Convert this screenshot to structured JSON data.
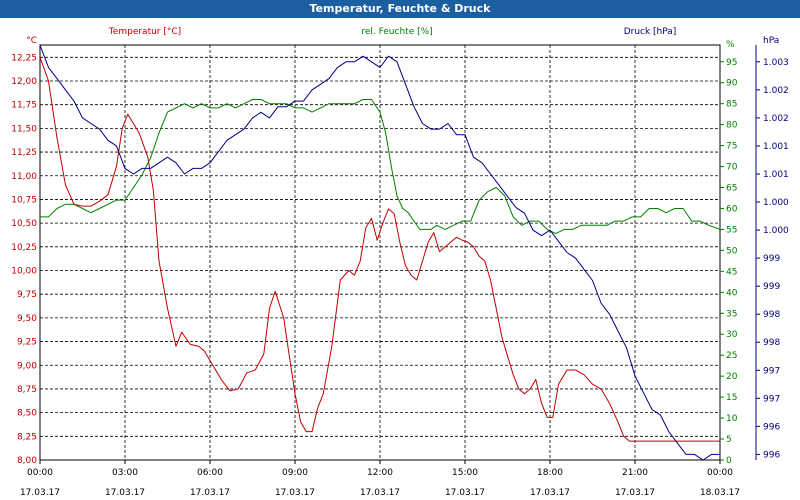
{
  "window": {
    "title": "Temperatur, Feuchte & Druck"
  },
  "chart_data": {
    "type": "line",
    "title": "Temperatur, Feuchte & Druck",
    "grid": true,
    "x_ticks": [
      {
        "time": "00:00",
        "date": "17.03.17"
      },
      {
        "time": "03:00",
        "date": "17.03.17"
      },
      {
        "time": "06:00",
        "date": "17.03.17"
      },
      {
        "time": "09:00",
        "date": "17.03.17"
      },
      {
        "time": "12:00",
        "date": "17.03.17"
      },
      {
        "time": "15:00",
        "date": "17.03.17"
      },
      {
        "time": "18:00",
        "date": "17.03.17"
      },
      {
        "time": "21:00",
        "date": "17.03.17"
      },
      {
        "time": "00:00",
        "date": "18.03.17"
      }
    ],
    "x_range_hours": [
      0,
      24
    ],
    "axes": {
      "temp": {
        "label": "Temperatur [°C]",
        "unit": "°C",
        "color": "#c00000",
        "range": [
          8.0,
          12.38
        ],
        "ticks": [
          "12,25",
          "12,00",
          "11,75",
          "11,50",
          "11,25",
          "11,00",
          "10,75",
          "10,50",
          "10,25",
          "10,00",
          "9,75",
          "9,50",
          "9,25",
          "9,00",
          "8,75",
          "8,50",
          "8,25",
          "8,00"
        ]
      },
      "humidity": {
        "label": "rel. Feuchte [%]",
        "unit": "%",
        "color": "#008000",
        "range": [
          0,
          99
        ],
        "ticks": [
          "95",
          "90",
          "85",
          "80",
          "75",
          "70",
          "65",
          "60",
          "55",
          "50",
          "45",
          "40",
          "35",
          "30",
          "25",
          "20",
          "15",
          "10",
          "5",
          "0"
        ]
      },
      "pressure": {
        "label": "Druck [hPa]",
        "unit": "hPa",
        "color": "#000080",
        "range": [
          995.9,
          1003.3
        ],
        "ticks": [
          "1.003",
          "1.002",
          "1.002",
          "1.001",
          "1.001",
          "1.000",
          "1.000",
          "999",
          "999",
          "998",
          "998",
          "997",
          "997",
          "996",
          "996"
        ]
      }
    },
    "series": [
      {
        "name": "Temperatur [°C]",
        "axis": "temp",
        "color": "#c00000",
        "x": [
          0,
          0.3,
          0.6,
          0.9,
          1.2,
          1.5,
          1.8,
          2.1,
          2.4,
          2.7,
          2.9,
          3.1,
          3.3,
          3.5,
          3.8,
          4.0,
          4.2,
          4.5,
          4.8,
          5.0,
          5.3,
          5.6,
          5.8,
          6.1,
          6.4,
          6.7,
          7.0,
          7.3,
          7.6,
          7.9,
          8.1,
          8.3,
          8.6,
          8.8,
          9.0,
          9.2,
          9.4,
          9.6,
          9.8,
          10.0,
          10.3,
          10.6,
          10.9,
          11.1,
          11.3,
          11.5,
          11.7,
          11.9,
          12.1,
          12.3,
          12.5,
          12.7,
          12.9,
          13.1,
          13.3,
          13.5,
          13.7,
          13.9,
          14.1,
          14.3,
          14.5,
          14.7,
          14.9,
          15.1,
          15.3,
          15.5,
          15.7,
          15.9,
          16.1,
          16.3,
          16.5,
          16.7,
          16.9,
          17.1,
          17.3,
          17.5,
          17.7,
          17.9,
          18.1,
          18.3,
          18.6,
          18.9,
          19.2,
          19.5,
          19.8,
          20.1,
          20.4,
          20.6,
          20.8,
          21.0,
          21.2,
          21.4,
          21.7,
          22.0,
          22.3,
          22.6,
          22.9,
          23.2,
          23.5,
          23.8,
          24.0
        ],
        "y": [
          12.25,
          12.0,
          11.4,
          10.9,
          10.7,
          10.68,
          10.68,
          10.73,
          10.8,
          11.1,
          11.5,
          11.65,
          11.55,
          11.45,
          11.2,
          10.85,
          10.1,
          9.6,
          9.2,
          9.35,
          9.22,
          9.2,
          9.15,
          9.0,
          8.85,
          8.73,
          8.75,
          8.92,
          8.95,
          9.12,
          9.6,
          9.78,
          9.5,
          9.1,
          8.7,
          8.4,
          8.3,
          8.3,
          8.55,
          8.7,
          9.2,
          9.9,
          10.0,
          9.95,
          10.1,
          10.45,
          10.55,
          10.32,
          10.5,
          10.65,
          10.6,
          10.3,
          10.05,
          9.95,
          9.9,
          10.1,
          10.3,
          10.4,
          10.2,
          10.25,
          10.3,
          10.35,
          10.32,
          10.3,
          10.25,
          10.15,
          10.1,
          9.9,
          9.6,
          9.3,
          9.1,
          8.9,
          8.75,
          8.7,
          8.75,
          8.85,
          8.6,
          8.45,
          8.45,
          8.8,
          8.95,
          8.95,
          8.9,
          8.8,
          8.75,
          8.6,
          8.4,
          8.25,
          8.2,
          8.2,
          8.2,
          8.2,
          8.2,
          8.2,
          8.2,
          8.2,
          8.2,
          8.2,
          8.2,
          8.2,
          8.2
        ],
        "y_note": "visible"
      },
      {
        "name": "rel. Feuchte [%]",
        "axis": "humidity",
        "color": "#008000",
        "x": [
          0,
          0.3,
          0.6,
          0.9,
          1.2,
          1.5,
          1.8,
          2.1,
          2.4,
          2.7,
          3.0,
          3.3,
          3.6,
          3.9,
          4.2,
          4.5,
          4.8,
          5.1,
          5.4,
          5.7,
          6.0,
          6.3,
          6.6,
          6.9,
          7.2,
          7.5,
          7.8,
          8.1,
          8.4,
          8.7,
          9.0,
          9.3,
          9.6,
          9.9,
          10.2,
          10.5,
          10.8,
          11.1,
          11.4,
          11.7,
          12.0,
          12.2,
          12.4,
          12.6,
          12.8,
          13.0,
          13.2,
          13.4,
          13.6,
          13.8,
          14.0,
          14.3,
          14.6,
          14.9,
          15.2,
          15.5,
          15.8,
          16.1,
          16.4,
          16.7,
          17.0,
          17.3,
          17.6,
          17.9,
          18.2,
          18.5,
          18.8,
          19.1,
          19.4,
          19.7,
          20.0,
          20.3,
          20.6,
          20.9,
          21.2,
          21.5,
          21.8,
          22.1,
          22.4,
          22.7,
          23.0,
          23.3,
          23.6,
          24.0
        ],
        "y": [
          58,
          58,
          60,
          61,
          61,
          60,
          59,
          60,
          61,
          62,
          62,
          65,
          68,
          72,
          78,
          83,
          84,
          85,
          84,
          85,
          84,
          84,
          85,
          84,
          85,
          86,
          86,
          85,
          85,
          85,
          84,
          84,
          83,
          84,
          85,
          85,
          85,
          85,
          86,
          86,
          83,
          78,
          70,
          63,
          60,
          59,
          57,
          55,
          55,
          55,
          56,
          55,
          56,
          57,
          57,
          62,
          64,
          65,
          63,
          58,
          56,
          57,
          57,
          55,
          54,
          55,
          55,
          56,
          56,
          56,
          56,
          57,
          57,
          58,
          58,
          60,
          60,
          59,
          60,
          60,
          57,
          57,
          56,
          55
        ]
      },
      {
        "name": "Druck [hPa]",
        "axis": "pressure",
        "color": "#000080",
        "x": [
          0,
          0.3,
          0.6,
          0.9,
          1.2,
          1.5,
          1.8,
          2.1,
          2.4,
          2.7,
          3.0,
          3.3,
          3.6,
          3.9,
          4.2,
          4.5,
          4.8,
          5.1,
          5.4,
          5.7,
          6.0,
          6.3,
          6.6,
          6.9,
          7.2,
          7.5,
          7.8,
          8.1,
          8.4,
          8.7,
          9.0,
          9.3,
          9.6,
          9.9,
          10.2,
          10.5,
          10.8,
          11.1,
          11.4,
          11.7,
          12.0,
          12.3,
          12.6,
          12.9,
          13.2,
          13.5,
          13.8,
          14.1,
          14.4,
          14.7,
          15.0,
          15.3,
          15.6,
          15.9,
          16.2,
          16.5,
          16.8,
          17.1,
          17.4,
          17.7,
          18.0,
          18.3,
          18.6,
          18.9,
          19.2,
          19.5,
          19.8,
          20.1,
          20.4,
          20.7,
          21.0,
          21.3,
          21.6,
          21.9,
          22.2,
          22.5,
          22.8,
          23.1,
          23.4,
          23.7,
          24.0
        ],
        "y": [
          1003.3,
          1002.9,
          1002.7,
          1002.5,
          1002.3,
          1002.0,
          1001.9,
          1001.8,
          1001.6,
          1001.5,
          1001.1,
          1001.0,
          1001.1,
          1001.1,
          1001.2,
          1001.3,
          1001.2,
          1001.0,
          1001.1,
          1001.1,
          1001.2,
          1001.4,
          1001.6,
          1001.7,
          1001.8,
          1002.0,
          1002.1,
          1002.0,
          1002.2,
          1002.2,
          1002.3,
          1002.3,
          1002.5,
          1002.6,
          1002.7,
          1002.9,
          1003.0,
          1003.0,
          1003.1,
          1003.0,
          1002.9,
          1003.1,
          1003.0,
          1002.6,
          1002.2,
          1001.9,
          1001.8,
          1001.8,
          1001.9,
          1001.7,
          1001.7,
          1001.3,
          1001.2,
          1001.0,
          1000.8,
          1000.6,
          1000.4,
          1000.3,
          1000.0,
          999.9,
          1000.0,
          999.8,
          999.6,
          999.5,
          999.3,
          999.1,
          998.7,
          998.5,
          998.2,
          997.9,
          997.4,
          997.1,
          996.8,
          996.7,
          996.4,
          996.2,
          996.0,
          996.0,
          995.9,
          996.0,
          996.0
        ]
      }
    ]
  }
}
